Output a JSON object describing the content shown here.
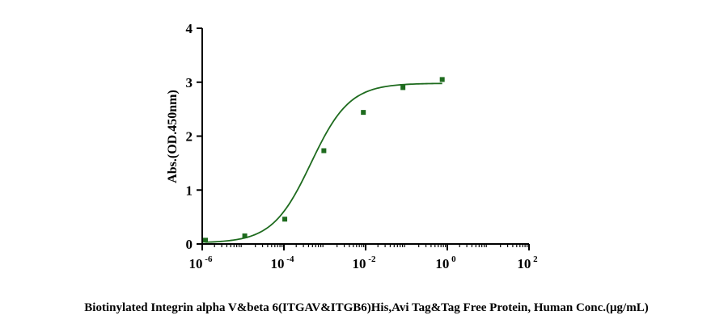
{
  "chart_data": {
    "type": "scatter",
    "xlabel": "Biotinylated Integrin alpha V&beta 6(ITGAV&ITGB6)His,Avi Tag&Tag Free Protein, Human  Conc.(μg/mL)",
    "ylabel": "Abs.(OD.450nm)",
    "x_scale": "log",
    "xlim": [
      1e-06,
      100
    ],
    "ylim": [
      0,
      4
    ],
    "x_ticks": [
      {
        "base": "10",
        "exp": "-6"
      },
      {
        "base": "10",
        "exp": "-4"
      },
      {
        "base": "10",
        "exp": "-2"
      },
      {
        "base": "10",
        "exp": "0"
      },
      {
        "base": "10",
        "exp": "2"
      }
    ],
    "y_ticks": [
      "0",
      "1",
      "2",
      "3",
      "4"
    ],
    "grid": false,
    "legend": "none",
    "series": [
      {
        "color": "#1e6b1e",
        "points": [
          {
            "x": 1.2e-06,
            "y": 0.07
          },
          {
            "x": 1.1e-05,
            "y": 0.15
          },
          {
            "x": 0.000105,
            "y": 0.46
          },
          {
            "x": 0.00095,
            "y": 1.73
          },
          {
            "x": 0.0088,
            "y": 2.44
          },
          {
            "x": 0.082,
            "y": 2.9
          },
          {
            "x": 0.75,
            "y": 3.05
          }
        ],
        "fit": {
          "model": "4PL",
          "bottom": 0.02,
          "top": 2.98,
          "ec50": 0.00046,
          "hill": 0.92
        }
      }
    ]
  }
}
